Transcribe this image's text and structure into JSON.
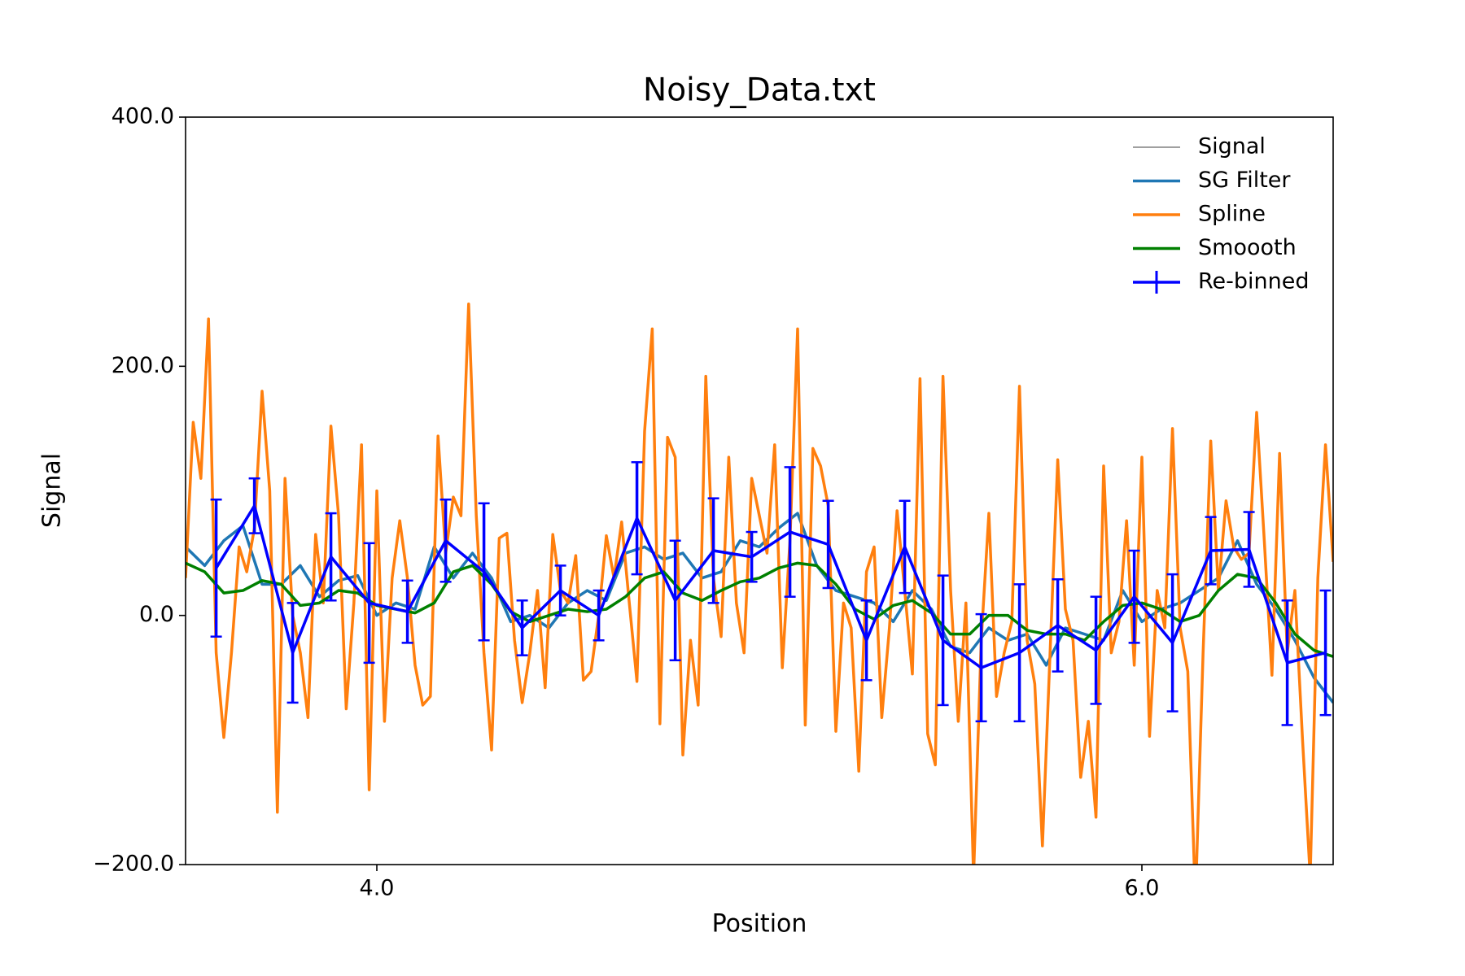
{
  "chart_data": {
    "type": "line",
    "title": "Noisy_Data.txt",
    "x_label": "Position",
    "y_label": "Signal",
    "xlim": [
      3.5,
      6.5
    ],
    "ylim": [
      -200,
      400
    ],
    "xticks": [
      {
        "value": 4,
        "label": "4.0"
      },
      {
        "value": 6,
        "label": "6.0"
      }
    ],
    "yticks": [
      {
        "value": -200,
        "label": "−200.0"
      },
      {
        "value": 0,
        "label": "0.0"
      },
      {
        "value": 200,
        "label": "200.0"
      },
      {
        "value": 400,
        "label": "400.0"
      }
    ],
    "grid": false,
    "legend": "upper right",
    "series": [
      {
        "name": "Signal",
        "color": "#808080",
        "width": 1.5,
        "x": [
          3.5,
          3.52,
          3.54,
          3.56,
          3.58,
          3.6,
          3.62,
          3.64,
          3.66,
          3.68,
          3.7,
          3.72,
          3.74,
          3.76,
          3.78,
          3.8,
          3.82,
          3.84,
          3.86,
          3.88,
          3.9,
          3.92,
          3.94,
          3.96,
          3.98,
          4.0,
          4.02,
          4.04,
          4.06,
          4.08,
          4.1,
          4.12,
          4.14,
          4.16,
          4.18,
          4.2,
          4.22,
          4.24,
          4.26,
          4.28,
          4.3,
          4.32,
          4.34,
          4.36,
          4.38,
          4.4,
          4.42,
          4.44,
          4.46,
          4.48,
          4.5,
          4.52,
          4.54,
          4.56,
          4.58,
          4.6,
          4.62,
          4.64,
          4.66,
          4.68,
          4.7,
          4.72,
          4.74,
          4.76,
          4.78,
          4.8,
          4.82,
          4.84,
          4.86,
          4.88,
          4.9,
          4.92,
          4.94,
          4.96,
          4.98,
          5.0,
          5.02,
          5.04,
          5.06,
          5.08,
          5.1,
          5.12,
          5.14,
          5.16,
          5.18,
          5.2,
          5.22,
          5.24,
          5.26,
          5.28,
          5.3,
          5.32,
          5.34,
          5.36,
          5.38,
          5.4,
          5.42,
          5.44,
          5.46,
          5.48,
          5.5,
          5.52,
          5.54,
          5.56,
          5.58,
          5.6,
          5.62,
          5.64,
          5.66,
          5.68,
          5.7,
          5.72,
          5.74,
          5.76,
          5.78,
          5.8,
          5.82,
          5.84,
          5.86,
          5.88,
          5.9,
          5.92,
          5.94,
          5.96,
          5.98,
          6.0,
          6.02,
          6.04,
          6.06,
          6.08,
          6.1,
          6.12,
          6.14,
          6.16,
          6.18,
          6.2,
          6.22,
          6.24,
          6.26,
          6.28,
          6.3,
          6.32,
          6.34,
          6.36,
          6.38,
          6.4,
          6.42,
          6.44,
          6.46,
          6.48,
          6.5
        ],
        "values": [
          30,
          155,
          110,
          238,
          -30,
          -98,
          -30,
          55,
          35,
          70,
          180,
          100,
          -158,
          110,
          0,
          -30,
          -82,
          65,
          10,
          152,
          80,
          -75,
          10,
          137,
          -140,
          100,
          -85,
          30,
          76,
          30,
          -40,
          -72,
          -65,
          144,
          50,
          95,
          80,
          250,
          80,
          -30,
          -108,
          62,
          66,
          -20,
          -70,
          -30,
          20,
          -58,
          65,
          20,
          10,
          48,
          -52,
          -45,
          0,
          64,
          30,
          75,
          10,
          -53,
          148,
          230,
          -87,
          143,
          127,
          -112,
          -20,
          -72,
          192,
          30,
          -17,
          127,
          10,
          -30,
          110,
          80,
          50,
          137,
          -42,
          60,
          230,
          -88,
          134,
          120,
          88,
          -93,
          10,
          -10,
          -125,
          35,
          55,
          -82,
          -10,
          84,
          20,
          -47,
          190,
          -95,
          -120,
          192,
          20,
          -85,
          10,
          -210,
          -20,
          82,
          -65,
          -30,
          -5,
          184,
          -20,
          -55,
          -185,
          -30,
          125,
          5,
          -20,
          -130,
          -85,
          -162,
          120,
          -30,
          -5,
          76,
          -40,
          127,
          -97,
          20,
          -10,
          150,
          -10,
          -45,
          -230,
          -30,
          140,
          20,
          92,
          55,
          45,
          50,
          163,
          60,
          -48,
          130,
          -30,
          20,
          -100,
          -210,
          30,
          137,
          43
        ]
      },
      {
        "name": "SG Filter",
        "color": "#1f77b4",
        "width": 3.5,
        "x": [
          3.5,
          3.55,
          3.6,
          3.65,
          3.7,
          3.75,
          3.8,
          3.85,
          3.9,
          3.95,
          4.0,
          4.05,
          4.1,
          4.15,
          4.2,
          4.25,
          4.3,
          4.35,
          4.4,
          4.45,
          4.5,
          4.55,
          4.6,
          4.65,
          4.7,
          4.75,
          4.8,
          4.85,
          4.9,
          4.95,
          5.0,
          5.05,
          5.1,
          5.15,
          5.2,
          5.25,
          5.3,
          5.35,
          5.4,
          5.45,
          5.5,
          5.55,
          5.6,
          5.65,
          5.7,
          5.75,
          5.8,
          5.85,
          5.9,
          5.95,
          6.0,
          6.05,
          6.1,
          6.15,
          6.2,
          6.25,
          6.3,
          6.35,
          6.4,
          6.45,
          6.5
        ],
        "values": [
          55,
          40,
          60,
          72,
          25,
          25,
          40,
          15,
          28,
          32,
          0,
          10,
          5,
          55,
          30,
          50,
          30,
          -5,
          0,
          -10,
          10,
          20,
          12,
          50,
          55,
          45,
          50,
          30,
          35,
          60,
          55,
          70,
          82,
          40,
          20,
          15,
          10,
          -5,
          20,
          5,
          -25,
          -30,
          -10,
          -20,
          -15,
          -40,
          -10,
          -15,
          -20,
          20,
          -5,
          5,
          10,
          20,
          30,
          60,
          25,
          5,
          -20,
          -50,
          -70
        ]
      },
      {
        "name": "Spline",
        "color": "#ff7f0e",
        "width": 3.5,
        "x": [
          3.5,
          3.52,
          3.54,
          3.56,
          3.58,
          3.6,
          3.62,
          3.64,
          3.66,
          3.68,
          3.7,
          3.72,
          3.74,
          3.76,
          3.78,
          3.8,
          3.82,
          3.84,
          3.86,
          3.88,
          3.9,
          3.92,
          3.94,
          3.96,
          3.98,
          4.0,
          4.02,
          4.04,
          4.06,
          4.08,
          4.1,
          4.12,
          4.14,
          4.16,
          4.18,
          4.2,
          4.22,
          4.24,
          4.26,
          4.28,
          4.3,
          4.32,
          4.34,
          4.36,
          4.38,
          4.4,
          4.42,
          4.44,
          4.46,
          4.48,
          4.5,
          4.52,
          4.54,
          4.56,
          4.58,
          4.6,
          4.62,
          4.64,
          4.66,
          4.68,
          4.7,
          4.72,
          4.74,
          4.76,
          4.78,
          4.8,
          4.82,
          4.84,
          4.86,
          4.88,
          4.9,
          4.92,
          4.94,
          4.96,
          4.98,
          5.0,
          5.02,
          5.04,
          5.06,
          5.08,
          5.1,
          5.12,
          5.14,
          5.16,
          5.18,
          5.2,
          5.22,
          5.24,
          5.26,
          5.28,
          5.3,
          5.32,
          5.34,
          5.36,
          5.38,
          5.4,
          5.42,
          5.44,
          5.46,
          5.48,
          5.5,
          5.52,
          5.54,
          5.56,
          5.58,
          5.6,
          5.62,
          5.64,
          5.66,
          5.68,
          5.7,
          5.72,
          5.74,
          5.76,
          5.78,
          5.8,
          5.82,
          5.84,
          5.86,
          5.88,
          5.9,
          5.92,
          5.94,
          5.96,
          5.98,
          6.0,
          6.02,
          6.04,
          6.06,
          6.08,
          6.1,
          6.12,
          6.14,
          6.16,
          6.18,
          6.2,
          6.22,
          6.24,
          6.26,
          6.28,
          6.3,
          6.32,
          6.34,
          6.36,
          6.38,
          6.4,
          6.42,
          6.44,
          6.46,
          6.48,
          6.5
        ],
        "values": [
          30,
          155,
          110,
          238,
          -30,
          -98,
          -30,
          55,
          35,
          70,
          180,
          100,
          -158,
          110,
          0,
          -30,
          -82,
          65,
          10,
          152,
          80,
          -75,
          10,
          137,
          -140,
          100,
          -85,
          30,
          76,
          30,
          -40,
          -72,
          -65,
          144,
          50,
          95,
          80,
          250,
          80,
          -30,
          -108,
          62,
          66,
          -20,
          -70,
          -30,
          20,
          -58,
          65,
          20,
          10,
          48,
          -52,
          -45,
          0,
          64,
          30,
          75,
          10,
          -53,
          148,
          230,
          -87,
          143,
          127,
          -112,
          -20,
          -72,
          192,
          30,
          -17,
          127,
          10,
          -30,
          110,
          80,
          50,
          137,
          -42,
          60,
          230,
          -88,
          134,
          120,
          88,
          -93,
          10,
          -10,
          -125,
          35,
          55,
          -82,
          -10,
          84,
          20,
          -47,
          190,
          -95,
          -120,
          192,
          20,
          -85,
          10,
          -210,
          -20,
          82,
          -65,
          -30,
          -5,
          184,
          -20,
          -55,
          -185,
          -30,
          125,
          5,
          -20,
          -130,
          -85,
          -162,
          120,
          -30,
          -5,
          76,
          -40,
          127,
          -97,
          20,
          -10,
          150,
          -10,
          -45,
          -230,
          -30,
          140,
          20,
          92,
          55,
          45,
          50,
          163,
          60,
          -48,
          130,
          -30,
          20,
          -100,
          -210,
          30,
          137,
          43
        ]
      },
      {
        "name": "Smoooth",
        "color": "green",
        "width": 3.5,
        "x": [
          3.5,
          3.55,
          3.6,
          3.65,
          3.7,
          3.75,
          3.8,
          3.85,
          3.9,
          3.95,
          4.0,
          4.05,
          4.1,
          4.15,
          4.2,
          4.25,
          4.3,
          4.35,
          4.4,
          4.45,
          4.5,
          4.55,
          4.6,
          4.65,
          4.7,
          4.75,
          4.8,
          4.85,
          4.9,
          4.95,
          5.0,
          5.05,
          5.1,
          5.15,
          5.2,
          5.25,
          5.3,
          5.35,
          5.4,
          5.45,
          5.5,
          5.55,
          5.6,
          5.65,
          5.7,
          5.75,
          5.8,
          5.85,
          5.9,
          5.95,
          6.0,
          6.05,
          6.1,
          6.15,
          6.2,
          6.25,
          6.3,
          6.35,
          6.4,
          6.45,
          6.5
        ],
        "values": [
          42,
          35,
          18,
          20,
          28,
          25,
          8,
          10,
          20,
          18,
          8,
          5,
          2,
          10,
          35,
          40,
          25,
          3,
          -5,
          0,
          5,
          3,
          5,
          15,
          30,
          35,
          18,
          12,
          20,
          27,
          30,
          38,
          42,
          40,
          25,
          5,
          -3,
          8,
          12,
          2,
          -15,
          -15,
          0,
          0,
          -12,
          -15,
          -15,
          -20,
          -5,
          8,
          10,
          5,
          -5,
          0,
          20,
          33,
          30,
          10,
          -15,
          -28,
          -33
        ]
      },
      {
        "name": "Re-binned",
        "color": "blue",
        "width": 3.5,
        "x": [
          3.58,
          3.68,
          3.78,
          3.88,
          3.98,
          4.08,
          4.18,
          4.28,
          4.38,
          4.48,
          4.58,
          4.68,
          4.78,
          4.88,
          4.98,
          5.08,
          5.18,
          5.28,
          5.38,
          5.48,
          5.58,
          5.68,
          5.78,
          5.88,
          5.98,
          6.08,
          6.18,
          6.28,
          6.38,
          6.48
        ],
        "values": [
          38,
          88,
          -30,
          47,
          10,
          3,
          60,
          35,
          -10,
          20,
          0,
          78,
          12,
          52,
          47,
          67,
          57,
          -20,
          55,
          -20,
          -42,
          -30,
          -8,
          -28,
          15,
          -22,
          52,
          53,
          -38,
          -30
        ],
        "errors": [
          55,
          22,
          40,
          35,
          48,
          25,
          33,
          55,
          22,
          20,
          20,
          45,
          48,
          42,
          20,
          52,
          35,
          32,
          37,
          52,
          43,
          55,
          37,
          43,
          37,
          55,
          27,
          30,
          50,
          50
        ]
      }
    ]
  }
}
